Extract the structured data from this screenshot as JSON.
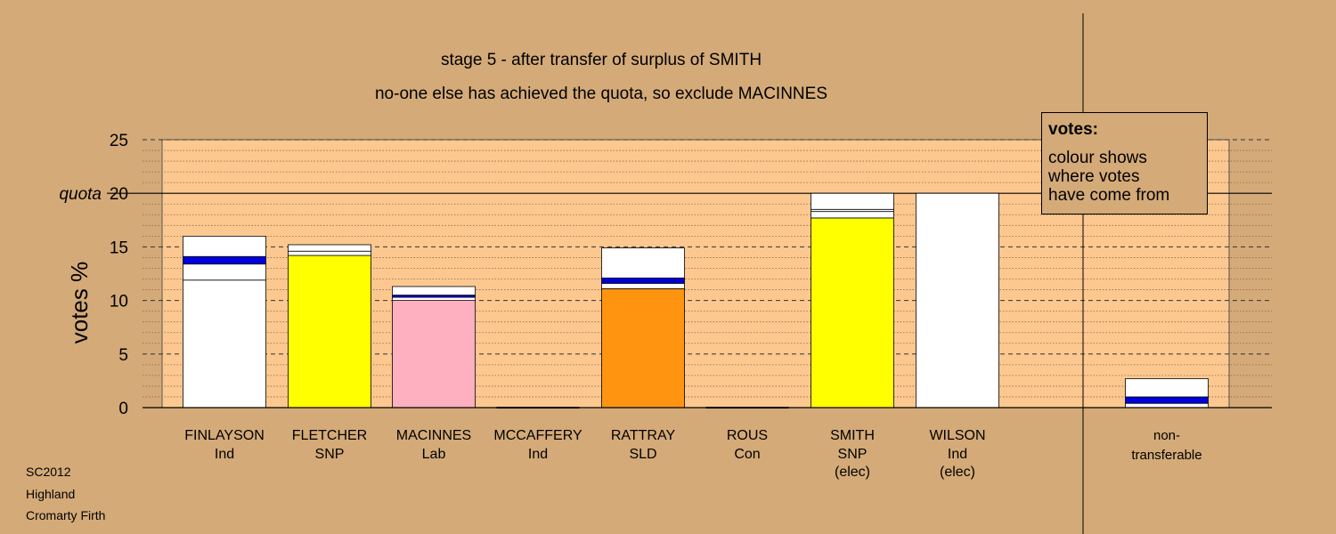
{
  "chart_data": {
    "type": "bar",
    "stacked": true,
    "title": "stage 5 - after transfer of surplus of SMITH",
    "subtitle": "no-one else has achieved the quota, so exclude MACINNES",
    "ylabel": "votes %",
    "ylim": [
      0,
      25
    ],
    "yticks": [
      "0",
      "5",
      "10",
      "15",
      "20",
      "25"
    ],
    "quota": {
      "label": "quota",
      "value": 20
    },
    "grid": true,
    "candidates": [
      {
        "name": "FINLAYSON",
        "party": "Ind",
        "note": "",
        "total": 16.0,
        "segments": [
          {
            "color": "#ffffff",
            "value": 11.9
          },
          {
            "color": "#ffffff",
            "value": 1.5
          },
          {
            "color": "#0000dd",
            "value": 0.7
          },
          {
            "color": "#ffffff",
            "value": 1.9
          }
        ]
      },
      {
        "name": "FLETCHER",
        "party": "SNP",
        "note": "",
        "total": 15.2,
        "segments": [
          {
            "color": "#ffff00",
            "value": 14.2
          },
          {
            "color": "#ffffff",
            "value": 0.4
          },
          {
            "color": "#ffffff",
            "value": 0.6
          }
        ]
      },
      {
        "name": "MACINNES",
        "party": "Lab",
        "note": "",
        "total": 11.3,
        "segments": [
          {
            "color": "#ffb0c0",
            "value": 10.0
          },
          {
            "color": "#ffffff",
            "value": 0.3
          },
          {
            "color": "#0000dd",
            "value": 0.2
          },
          {
            "color": "#ffffff",
            "value": 0.8
          }
        ]
      },
      {
        "name": "MCCAFFERY",
        "party": "Ind",
        "note": "",
        "total": 0,
        "segments": []
      },
      {
        "name": "RATTRAY",
        "party": "SLD",
        "note": "",
        "total": 14.9,
        "segments": [
          {
            "color": "#ff9410",
            "value": 11.1
          },
          {
            "color": "#ffffff",
            "value": 0.5
          },
          {
            "color": "#0000dd",
            "value": 0.5
          },
          {
            "color": "#ffffff",
            "value": 2.8
          }
        ]
      },
      {
        "name": "ROUS",
        "party": "Con",
        "note": "",
        "total": 0,
        "segments": []
      },
      {
        "name": "SMITH",
        "party": "SNP",
        "note": "(elec)",
        "total": 20.0,
        "segments": [
          {
            "color": "#ffff00",
            "value": 17.7
          },
          {
            "color": "#ffffff",
            "value": 0.6
          },
          {
            "color": "#ffffff",
            "value": 0.2
          },
          {
            "color": "#ffffff",
            "value": 1.5
          }
        ]
      },
      {
        "name": "WILSON",
        "party": "Ind",
        "note": "(elec)",
        "total": 20.0,
        "segments": [
          {
            "color": "#ffffff",
            "value": 20.0
          }
        ]
      }
    ],
    "non_transferable": {
      "label_line1": "non-",
      "label_line2": "transferable",
      "total": 2.7,
      "segments": [
        {
          "color": "#ffffff",
          "value": 0.4
        },
        {
          "color": "#0000dd",
          "value": 0.6
        },
        {
          "color": "#ffffff",
          "value": 1.7
        }
      ]
    }
  },
  "legend": {
    "title": "votes:",
    "line1": "colour shows",
    "line2": "where votes",
    "line3": "have come from"
  },
  "footer": {
    "line1": "SC2012",
    "line2": "Highland",
    "line3": "Cromarty Firth"
  }
}
